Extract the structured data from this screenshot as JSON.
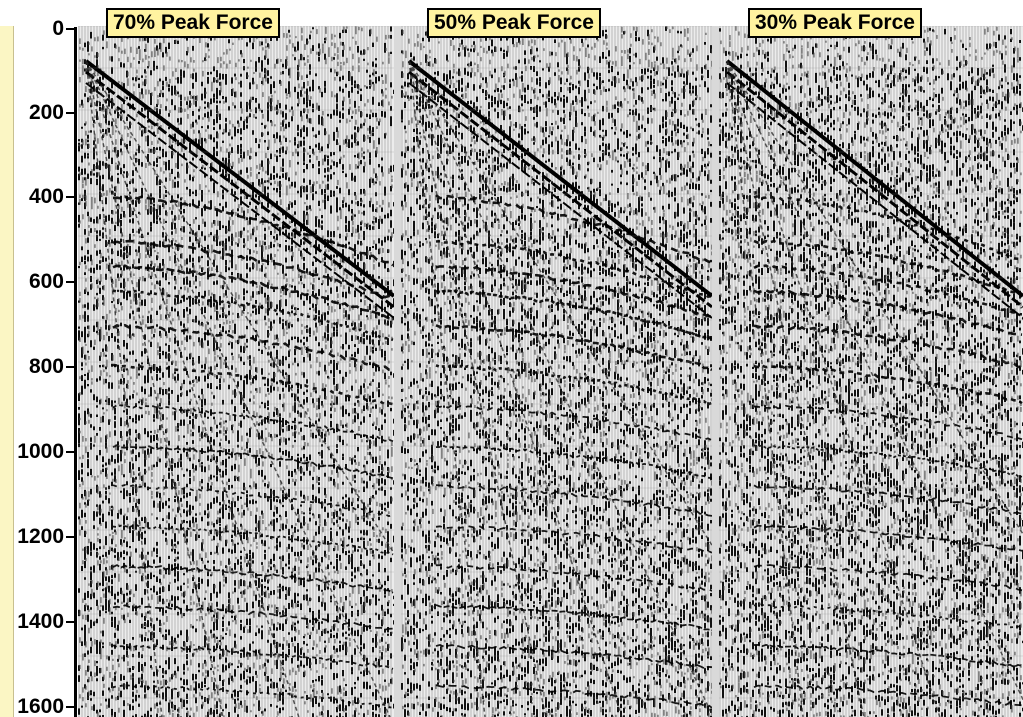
{
  "axis": {
    "ticks": [
      "0",
      "200",
      "400",
      "600",
      "800",
      "1000",
      "1200",
      "1400",
      "1600"
    ]
  },
  "panels": [
    {
      "label": "70% Peak Force",
      "force_fraction": 0.7
    },
    {
      "label": "50% Peak Force",
      "force_fraction": 0.5
    },
    {
      "label": "30% Peak Force",
      "force_fraction": 0.3
    }
  ],
  "colors": {
    "axis_background": "#fbf6c4",
    "label_background": "#fff3a0",
    "trace": "#000000",
    "paper": "#ffffff"
  }
}
